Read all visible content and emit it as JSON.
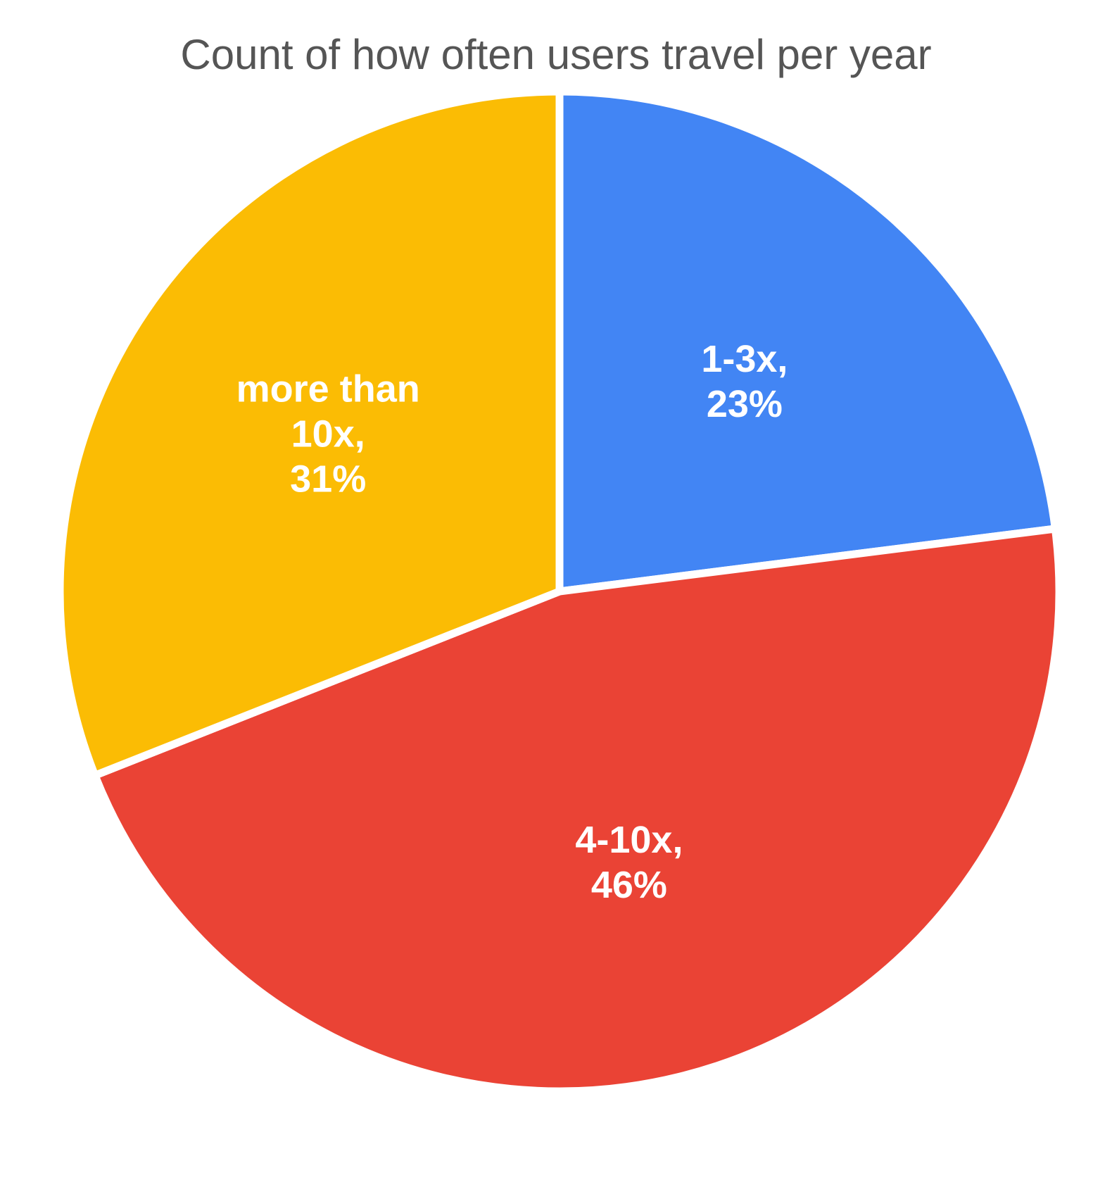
{
  "chart_data": {
    "type": "pie",
    "title": "Count of how often users travel per year",
    "slices": [
      {
        "label": "1-3x",
        "value": 23,
        "display": "23%",
        "color": "#4285F4"
      },
      {
        "label": "4-10x",
        "value": 46,
        "display": "46%",
        "color": "#EA4335"
      },
      {
        "label": "more than 10x",
        "value": 31,
        "display": "31%",
        "color": "#FBBC04"
      }
    ],
    "legend": "none",
    "start_angle": "12 o'clock",
    "direction": "clockwise",
    "slice_gap_color": "#ffffff"
  }
}
